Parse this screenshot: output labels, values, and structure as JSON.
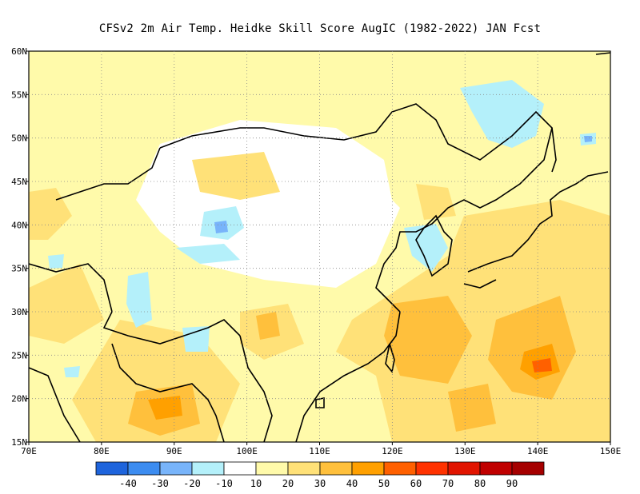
{
  "title": "CFSv2  2m Air Temp. Heidke Skill Score AugIC (1982-2022) JAN Fcst",
  "map": {
    "lon_range": [
      70,
      150
    ],
    "lat_range": [
      15,
      60
    ],
    "lon_ticks": [
      "70E",
      "80E",
      "90E",
      "100E",
      "110E",
      "120E",
      "130E",
      "140E",
      "150E"
    ],
    "lat_ticks": [
      "15N",
      "20N",
      "25N",
      "30N",
      "35N",
      "40N",
      "45N",
      "50N",
      "55N",
      "60N"
    ],
    "grid": "dotted"
  },
  "colorbar": {
    "colors": [
      "#1e64dc",
      "#3c8cf0",
      "#78b4fa",
      "#b4f0fa",
      "#ffffff",
      "#fffaaa",
      "#ffe178",
      "#ffc03c",
      "#ffa000",
      "#ff6000",
      "#ff3200",
      "#e11400",
      "#c00000",
      "#a50000"
    ],
    "labels": [
      "-40",
      "-30",
      "-20",
      "-10",
      "10",
      "20",
      "30",
      "40",
      "50",
      "60",
      "70",
      "80",
      "90"
    ]
  }
}
